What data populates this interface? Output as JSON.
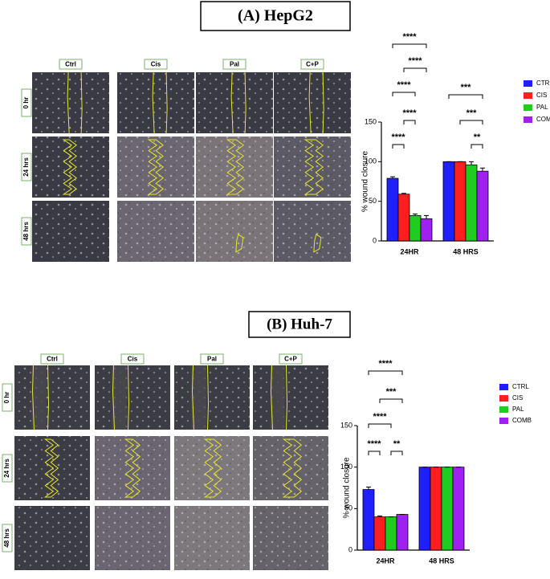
{
  "panels": [
    {
      "title": "(A) HepG2",
      "columns": [
        "Ctrl",
        "Cis",
        "Pal",
        "C+P"
      ],
      "rows": [
        "0 hr",
        "24 hrs",
        "48 hrs"
      ]
    },
    {
      "title": "(B) Huh-7",
      "columns": [
        "Ctrl",
        "Cis",
        "Pal",
        "C+P"
      ],
      "rows": [
        "0 hr",
        "24 hrs",
        "48 hrs"
      ]
    }
  ],
  "chart_data": [
    {
      "type": "bar",
      "y_label": "% wound closure",
      "categories": [
        "24HR",
        "48 HRS"
      ],
      "series": [
        {
          "name": "CTRL",
          "color": "#1f1fff",
          "values": [
            79,
            100
          ],
          "errors": [
            2,
            0
          ]
        },
        {
          "name": "CIS",
          "color": "#ff1f1f",
          "values": [
            59,
            100
          ],
          "errors": [
            1,
            0
          ]
        },
        {
          "name": "PAL",
          "color": "#1fcc1f",
          "values": [
            32,
            96
          ],
          "errors": [
            2,
            4
          ]
        },
        {
          "name": "COMB",
          "color": "#a020f0",
          "values": [
            28,
            88
          ],
          "errors": [
            4,
            4
          ]
        }
      ],
      "ylim": [
        0,
        150
      ],
      "yticks": [
        0,
        50,
        100,
        150
      ],
      "annotations": [
        "****",
        "****",
        "****",
        "****",
        "****",
        "***",
        "***",
        "**"
      ]
    },
    {
      "type": "bar",
      "y_label": "% wound closure",
      "categories": [
        "24HR",
        "48 HRS"
      ],
      "series": [
        {
          "name": "CTRL",
          "color": "#1f1fff",
          "values": [
            73,
            100
          ],
          "errors": [
            3,
            0
          ]
        },
        {
          "name": "CIS",
          "color": "#ff1f1f",
          "values": [
            40,
            100
          ],
          "errors": [
            1,
            0
          ]
        },
        {
          "name": "PAL",
          "color": "#1fcc1f",
          "values": [
            40,
            100
          ],
          "errors": [
            0,
            0
          ]
        },
        {
          "name": "COMB",
          "color": "#a020f0",
          "values": [
            43,
            100
          ],
          "errors": [
            0,
            0
          ]
        }
      ],
      "ylim": [
        0,
        150
      ],
      "yticks": [
        0,
        50,
        100,
        150
      ],
      "annotations": [
        "****",
        "***",
        "****",
        "****",
        "**"
      ]
    }
  ]
}
